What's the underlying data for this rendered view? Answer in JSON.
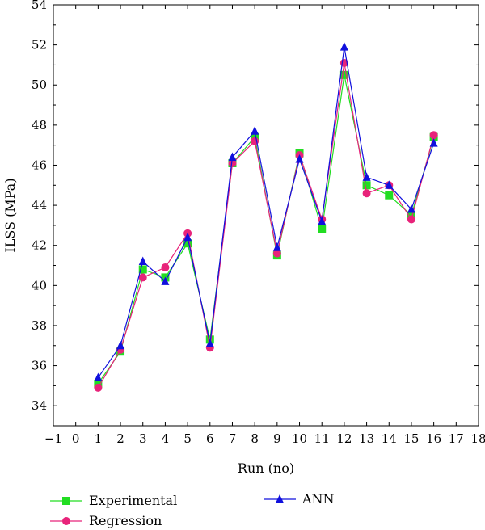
{
  "chart_data": {
    "type": "line",
    "xlabel": "Run (no)",
    "ylabel": "ILSS (MPa)",
    "xlim": [
      -1,
      18
    ],
    "ylim": [
      33,
      54
    ],
    "x_ticks": [
      -1,
      0,
      1,
      2,
      3,
      4,
      5,
      6,
      7,
      8,
      9,
      10,
      11,
      12,
      13,
      14,
      15,
      16,
      17,
      18
    ],
    "y_ticks": [
      34,
      36,
      38,
      40,
      42,
      44,
      46,
      48,
      50,
      52,
      54
    ],
    "x": [
      1,
      2,
      3,
      4,
      5,
      6,
      7,
      8,
      9,
      10,
      11,
      12,
      13,
      14,
      15,
      16
    ],
    "grid": false,
    "legend_position": "bottom",
    "series": [
      {
        "name": "Experimental",
        "color": "#22dd22",
        "marker": "square",
        "values": [
          35.1,
          36.7,
          40.8,
          40.4,
          42.1,
          37.3,
          46.1,
          47.4,
          41.5,
          46.6,
          42.8,
          50.5,
          45.0,
          44.5,
          43.5,
          47.4
        ]
      },
      {
        "name": "Regression",
        "color": "#e8237a",
        "marker": "circle",
        "values": [
          34.9,
          36.8,
          40.4,
          40.9,
          42.6,
          36.9,
          46.1,
          47.2,
          41.6,
          46.5,
          43.3,
          51.1,
          44.6,
          45.0,
          43.3,
          47.5
        ]
      },
      {
        "name": "ANN",
        "color": "#1010dd",
        "marker": "triangle",
        "values": [
          35.4,
          37.0,
          41.2,
          40.2,
          42.4,
          37.1,
          46.4,
          47.7,
          41.9,
          46.3,
          43.2,
          51.9,
          45.4,
          45.0,
          43.8,
          47.1
        ]
      }
    ]
  }
}
